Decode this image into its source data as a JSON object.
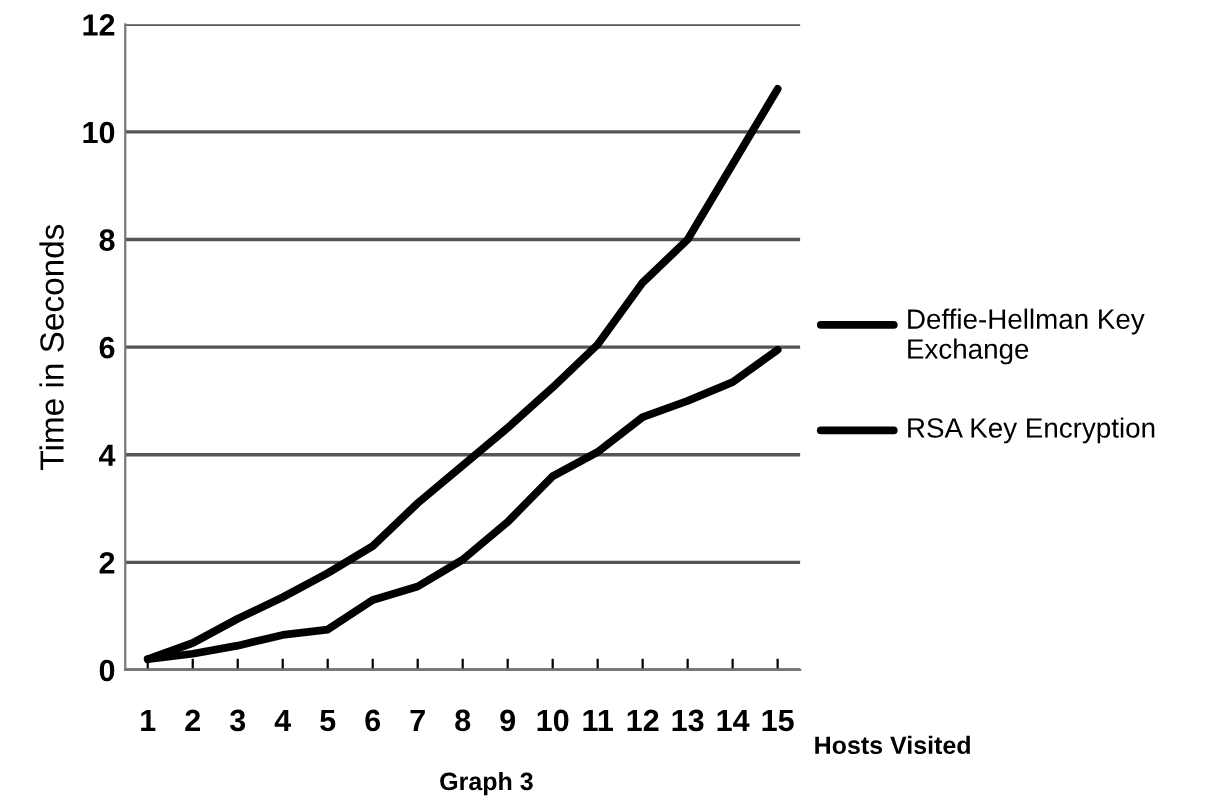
{
  "chart_data": {
    "type": "line",
    "title": "Graph 3",
    "xlabel": "Hosts Visited",
    "ylabel": "Time in Seconds",
    "categories": [
      "1",
      "2",
      "3",
      "4",
      "5",
      "6",
      "7",
      "8",
      "9",
      "10",
      "11",
      "12",
      "13",
      "14",
      "15"
    ],
    "series": [
      {
        "name": "Deffie-Hellman Key Exchange",
        "color": "#000000",
        "values": [
          0.2,
          0.5,
          0.95,
          1.35,
          1.8,
          2.3,
          3.1,
          3.8,
          4.5,
          5.25,
          6.05,
          7.2,
          8.0,
          9.4,
          10.8
        ]
      },
      {
        "name": "RSA Key Encryption",
        "color": "#000000",
        "values": [
          0.2,
          0.3,
          0.45,
          0.65,
          0.75,
          1.3,
          1.55,
          2.05,
          2.75,
          3.6,
          4.05,
          4.7,
          5.0,
          5.35,
          5.95
        ]
      }
    ],
    "ylim": [
      0,
      12
    ],
    "yticks": [
      0,
      2,
      4,
      6,
      8,
      10,
      12
    ],
    "grid": "y",
    "legend": "right",
    "marker": "none",
    "line_style": "solid"
  }
}
